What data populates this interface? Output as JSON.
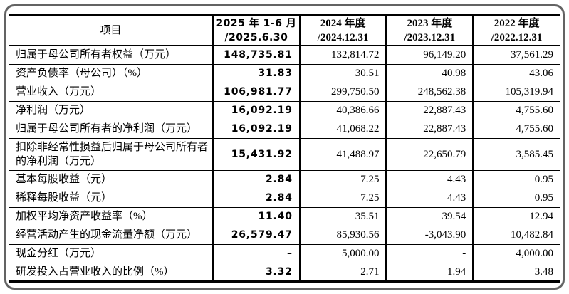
{
  "page": {
    "background_color": "#ffffff",
    "frame_border_color": "#636363",
    "table_line_color": "#000000",
    "text_color": "#000000"
  },
  "table": {
    "header": {
      "item_label": "项目",
      "periods": [
        {
          "line1": "2025 年 1-6 月",
          "line2": "/2025.6.30"
        },
        {
          "line1": "2024 年度",
          "line2": "/2024.12.31"
        },
        {
          "line1": "2023 年度",
          "line2": "/2023.12.31"
        },
        {
          "line1": "2022 年度",
          "line2": "/2022.12.31"
        }
      ]
    },
    "rows": [
      {
        "item": "归属于母公司所有者权益（万元）",
        "values": [
          "148,735.81",
          "132,814.72",
          "96,149.20",
          "37,561.29"
        ]
      },
      {
        "item": "资产负债率（母公司）（%）",
        "values": [
          "31.83",
          "30.51",
          "40.98",
          "43.06"
        ]
      },
      {
        "item": "营业收入（万元）",
        "values": [
          "106,981.77",
          "299,750.50",
          "248,562.38",
          "105,319.94"
        ]
      },
      {
        "item": "净利润（万元）",
        "values": [
          "16,092.19",
          "40,386.66",
          "22,887.43",
          "4,755.60"
        ]
      },
      {
        "item": "归属于母公司所有者的净利润（万元）",
        "values": [
          "16,092.19",
          "41,068.22",
          "22,887.43",
          "4,755.60"
        ]
      },
      {
        "item": "扣除非经常性损益后归属于母公司所有者的净利润（万元）",
        "values": [
          "15,431.92",
          "41,488.97",
          "22,650.79",
          "3,585.45"
        ]
      },
      {
        "item": "基本每股收益（元）",
        "values": [
          "2.84",
          "7.25",
          "4.43",
          "0.95"
        ]
      },
      {
        "item": "稀释每股收益（元）",
        "values": [
          "2.84",
          "7.25",
          "4.43",
          "0.95"
        ]
      },
      {
        "item": "加权平均净资产收益率（%）",
        "values": [
          "11.40",
          "35.51",
          "39.54",
          "12.94"
        ]
      },
      {
        "item": "经营活动产生的现金流量净额（万元）",
        "values": [
          "26,579.47",
          "85,930.56",
          "-3,043.90",
          "10,482.84"
        ]
      },
      {
        "item": "现金分红（万元）",
        "values": [
          "–",
          "5,000.00",
          "-",
          "4,000.00"
        ]
      },
      {
        "item": "研发投入占营业收入的比例（%）",
        "values": [
          "3.32",
          "2.71",
          "1.94",
          "3.48"
        ]
      }
    ]
  }
}
